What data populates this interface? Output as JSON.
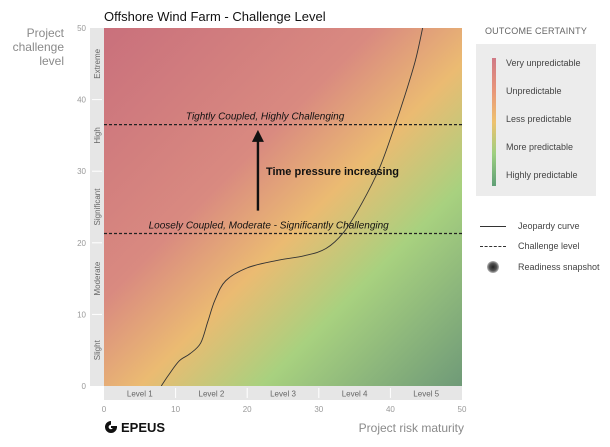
{
  "chart_data": {
    "type": "heatmap",
    "title": "Offshore Wind Farm - Challenge Level",
    "ylabel": "Project challenge level",
    "xlabel": "Project risk maturity",
    "xlim": [
      0,
      50
    ],
    "ylim": [
      0,
      50
    ],
    "x_ticks": [
      0,
      10,
      20,
      30,
      40,
      50
    ],
    "y_ticks": [
      0,
      10,
      20,
      30,
      40,
      50
    ],
    "x_bands": [
      {
        "label": "Level 1",
        "from": 0,
        "to": 10
      },
      {
        "label": "Level 2",
        "from": 10,
        "to": 20
      },
      {
        "label": "Level 3",
        "from": 20,
        "to": 30
      },
      {
        "label": "Level 4",
        "from": 30,
        "to": 40
      },
      {
        "label": "Level 5",
        "from": 40,
        "to": 50
      }
    ],
    "y_bands": [
      {
        "label": "Slight",
        "from": 0,
        "to": 10
      },
      {
        "label": "Moderate",
        "from": 10,
        "to": 20
      },
      {
        "label": "Significant",
        "from": 20,
        "to": 30
      },
      {
        "label": "High",
        "from": 30,
        "to": 40
      },
      {
        "label": "Extreme",
        "from": 40,
        "to": 50
      }
    ],
    "jeopardy_curve": [
      [
        8,
        0
      ],
      [
        9,
        1.5
      ],
      [
        10.5,
        3.5
      ],
      [
        12,
        4.5
      ],
      [
        13.5,
        6
      ],
      [
        14.5,
        9
      ],
      [
        15.5,
        12
      ],
      [
        17,
        14.7
      ],
      [
        20,
        16.5
      ],
      [
        24,
        17.5
      ],
      [
        28,
        18.2
      ],
      [
        31,
        19.2
      ],
      [
        33.5,
        21.5
      ],
      [
        36,
        25.5
      ],
      [
        38.5,
        30.5
      ],
      [
        40.5,
        36
      ],
      [
        42,
        40.5
      ],
      [
        43.5,
        45.5
      ],
      [
        44.5,
        50
      ]
    ],
    "challenge_levels": [
      {
        "y": 36.5,
        "label": "Tightly Coupled, Highly Challenging"
      },
      {
        "y": 21.3,
        "label": "Loosely Coupled, Moderate - Significantly Challenging"
      }
    ],
    "arrow": {
      "x": 21.5,
      "from_y": 24.5,
      "to_y": 35.5,
      "label": "Time pressure increasing"
    },
    "legend": {
      "title": "OUTCOME CERTAINTY",
      "items": [
        "Very unpredictable",
        "Unpredictable",
        "Less predictable",
        "More predictable",
        "Highly predictable"
      ],
      "colors": [
        "#cf7884",
        "#e8957a",
        "#eec16e",
        "#9dcf80",
        "#5f9f76"
      ]
    },
    "key": {
      "jeopardy": "Jeopardy curve",
      "challenge": "Challenge level",
      "snapshot": "Readiness snapshot"
    }
  },
  "brand": "EPEUS"
}
